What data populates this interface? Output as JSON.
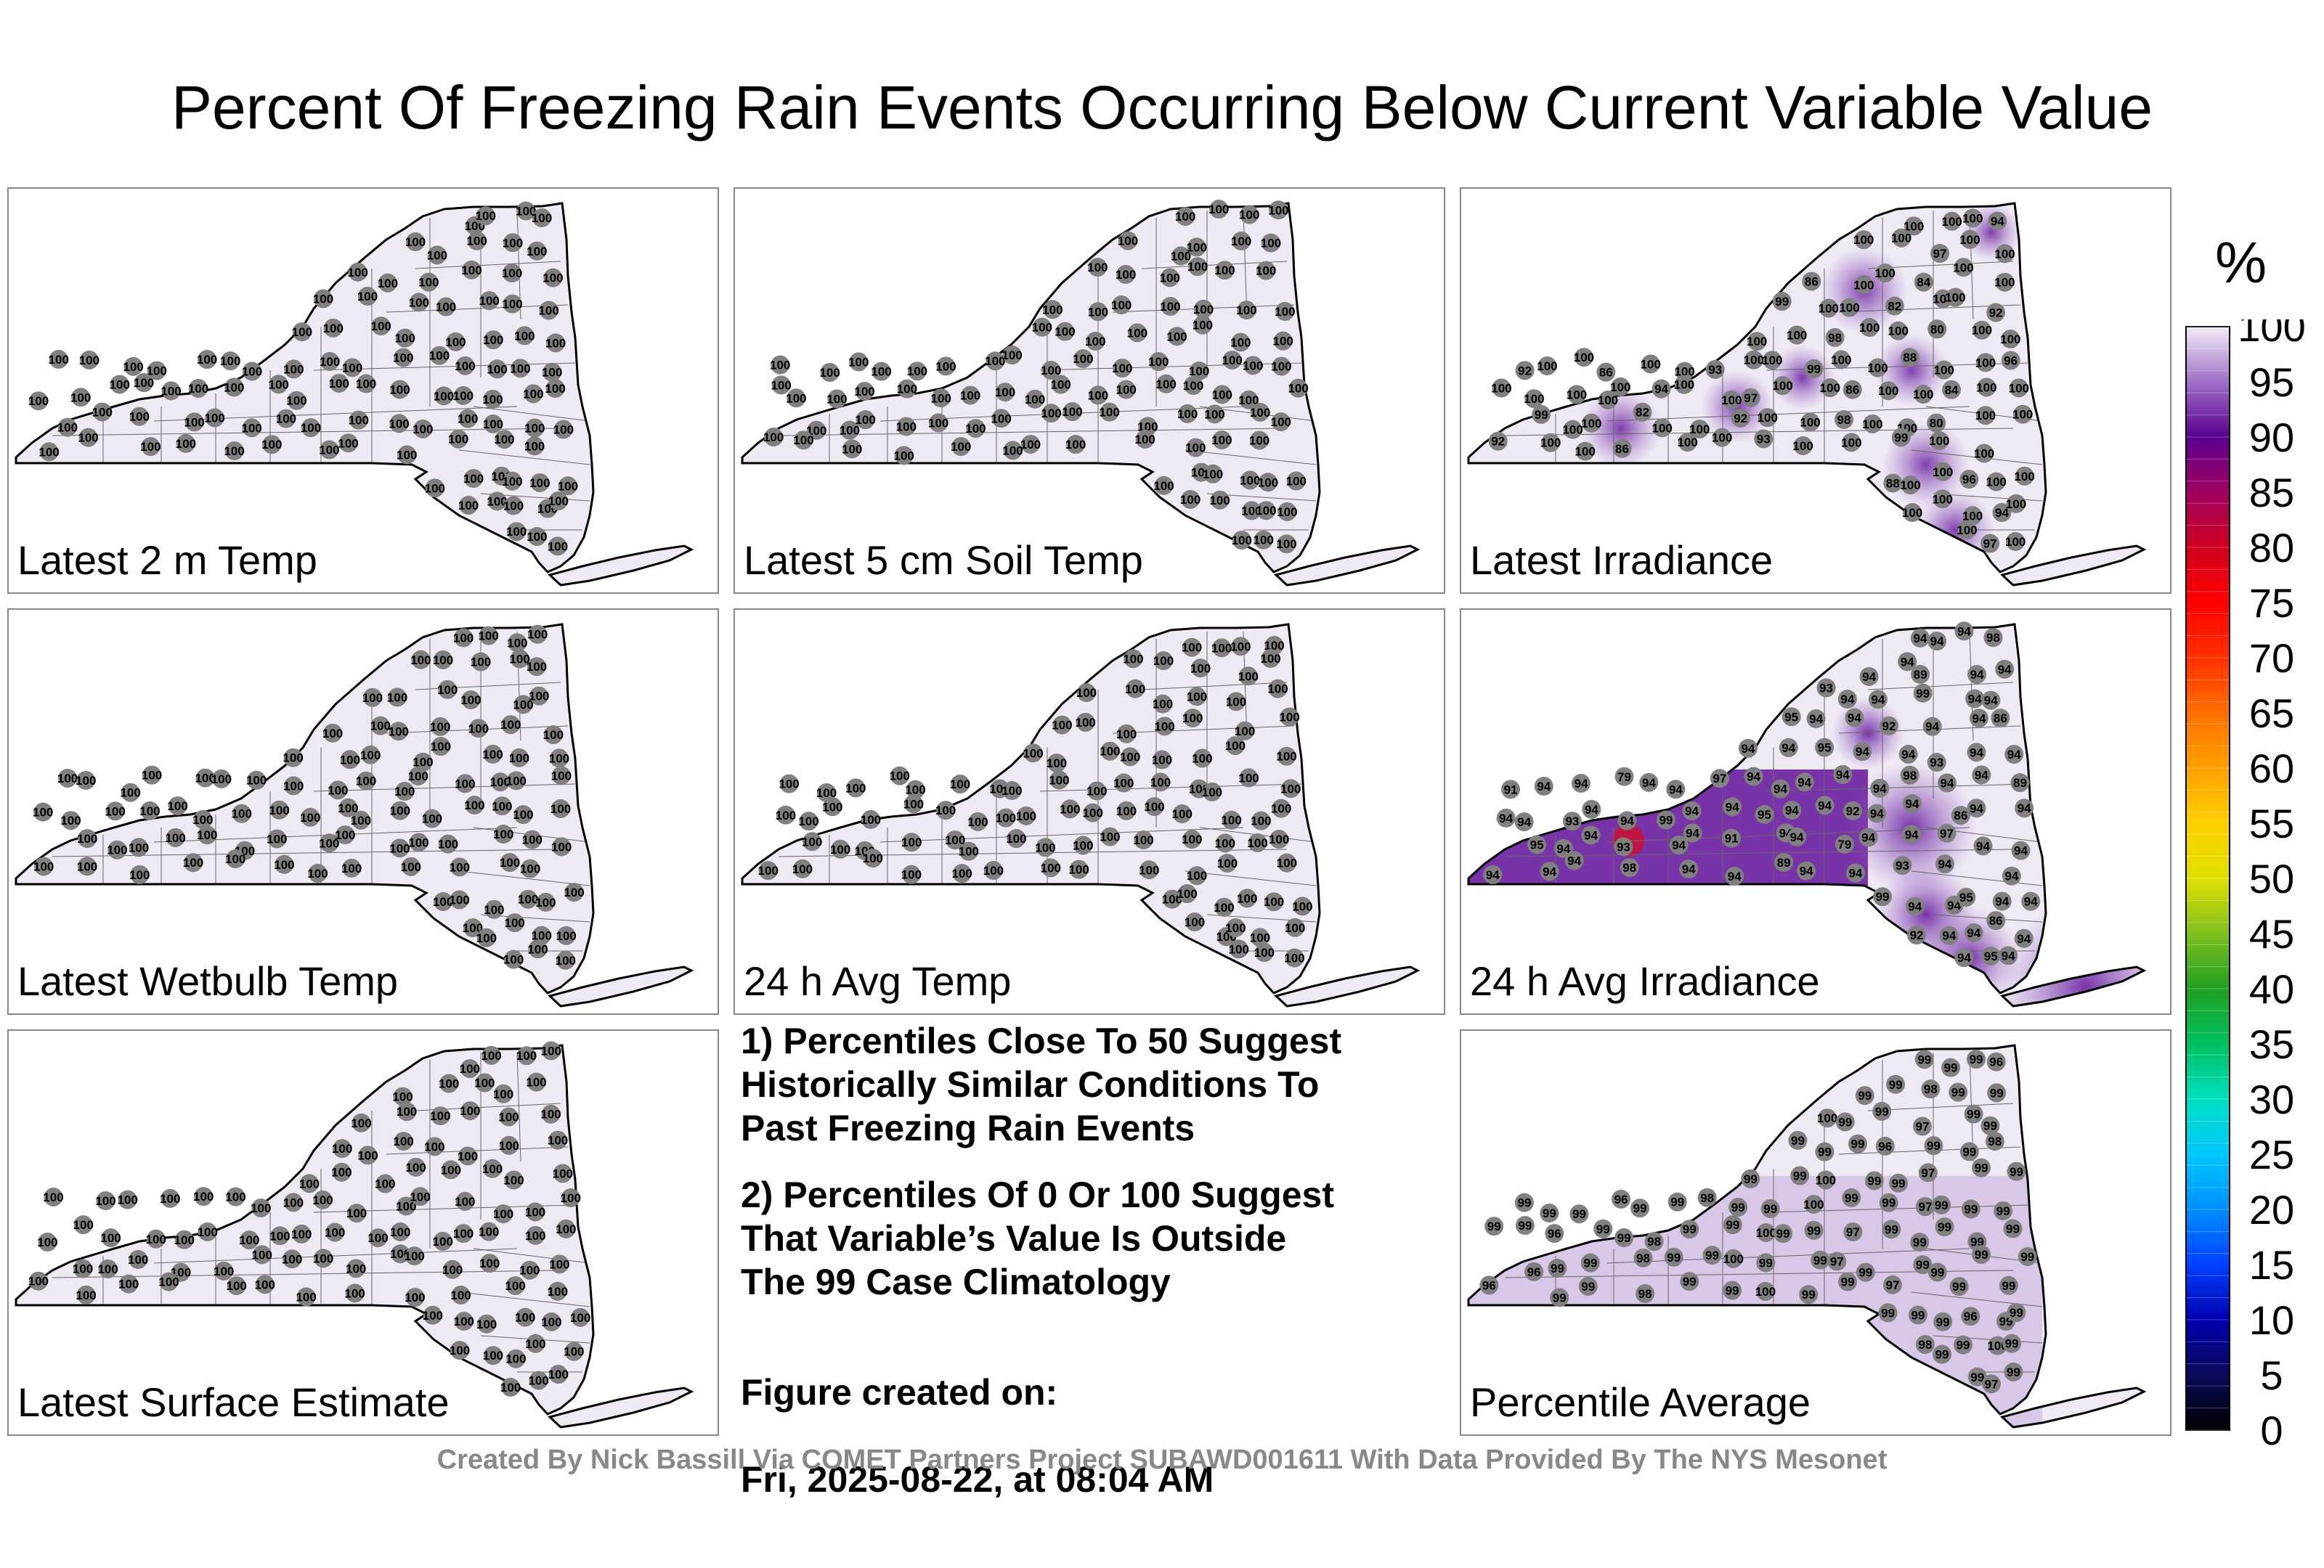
{
  "title": "Percent Of Freezing Rain Events Occurring Below Current Variable Value",
  "panels": [
    {
      "label": "Latest 2 m Temp",
      "mode": "flat",
      "station_value": "100"
    },
    {
      "label": "Latest 5 cm Soil Temp",
      "mode": "flat",
      "station_value": "100"
    },
    {
      "label": "Latest Irradiance",
      "mode": "irradiance",
      "station_values": [
        "100",
        "86",
        "82",
        "94",
        "93",
        "92",
        "97",
        "99",
        "98",
        "86",
        "88",
        "80",
        "84",
        "96",
        "92",
        "99"
      ]
    },
    {
      "label": "Latest Wetbulb Temp",
      "mode": "flat",
      "station_value": "100"
    },
    {
      "label": "24 h Avg Temp",
      "mode": "flat",
      "station_value": "100"
    },
    {
      "label": "24 h Avg Irradiance",
      "mode": "avg_irradiance",
      "station_values": [
        "94",
        "93",
        "95",
        "98",
        "91",
        "92",
        "89",
        "79",
        "86",
        "93",
        "97",
        "95",
        "99"
      ]
    },
    {
      "label": "Latest Surface Estimate",
      "mode": "flat",
      "station_value": "100"
    },
    {
      "label": "Percentile Average",
      "mode": "average",
      "station_values": [
        "99",
        "98",
        "97",
        "96",
        "100"
      ]
    }
  ],
  "notes": {
    "note1": "1) Percentiles Close To 50 Suggest\nHistorically Similar Conditions To\nPast Freezing Rain Events",
    "note2": "2) Percentiles Of 0 Or 100 Suggest\nThat Variable’s Value Is Outside\nThe 99 Case Climatology",
    "created_label": "Figure created on:",
    "created_value": "Fri, 2025-08-22, at 08:04 AM"
  },
  "colorbar": {
    "unit": "%",
    "ticks": [
      "100",
      "95",
      "90",
      "85",
      "80",
      "75",
      "70",
      "65",
      "60",
      "55",
      "50",
      "45",
      "40",
      "35",
      "30",
      "25",
      "20",
      "15",
      "10",
      "5",
      "0"
    ],
    "range": [
      0,
      100
    ]
  },
  "footer": "Created By Nick Bassill Via COMET Partners Project SUBAWD001611 With Data Provided By The NYS Mesonet",
  "colors": {
    "state_fill": "#efe9f4",
    "station_dot": "#808080",
    "irradiance_low": "#6a1fa0",
    "irradiance_mid": "#9a6cc4",
    "cold_spot": "#cc1030"
  }
}
